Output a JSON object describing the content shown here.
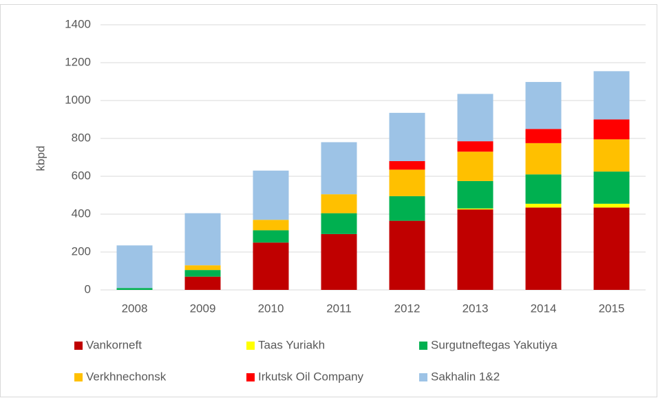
{
  "chart_data": {
    "type": "stacked_bar",
    "y_label": "kbpd",
    "categories": [
      "2008",
      "2009",
      "2010",
      "2011",
      "2012",
      "2013",
      "2014",
      "2015"
    ],
    "series": [
      {
        "name": "Vankorneft",
        "color": "#c00000",
        "values": [
          0,
          70,
          250,
          295,
          365,
          425,
          435,
          435
        ]
      },
      {
        "name": "Taas Yuriakh",
        "color": "#ffff00",
        "values": [
          0,
          0,
          0,
          0,
          0,
          5,
          20,
          20
        ]
      },
      {
        "name": "Surgutneftegas Yakutiya",
        "color": "#00b050",
        "values": [
          10,
          35,
          65,
          110,
          130,
          145,
          155,
          170
        ]
      },
      {
        "name": "Verkhnechonsk",
        "color": "#ffc000",
        "values": [
          0,
          25,
          55,
          100,
          140,
          155,
          165,
          170
        ]
      },
      {
        "name": "Irkutsk Oil Company",
        "color": "#ff0000",
        "values": [
          0,
          0,
          0,
          0,
          45,
          55,
          75,
          105
        ]
      },
      {
        "name": "Sakhalin 1&2",
        "color": "#9dc3e6",
        "values": [
          225,
          275,
          260,
          275,
          255,
          250,
          248,
          255
        ]
      }
    ],
    "ylim": [
      0,
      1400
    ],
    "yticks": [
      0,
      200,
      400,
      600,
      800,
      1000,
      1200,
      1400
    ],
    "grid": true,
    "legend": "bottom"
  }
}
